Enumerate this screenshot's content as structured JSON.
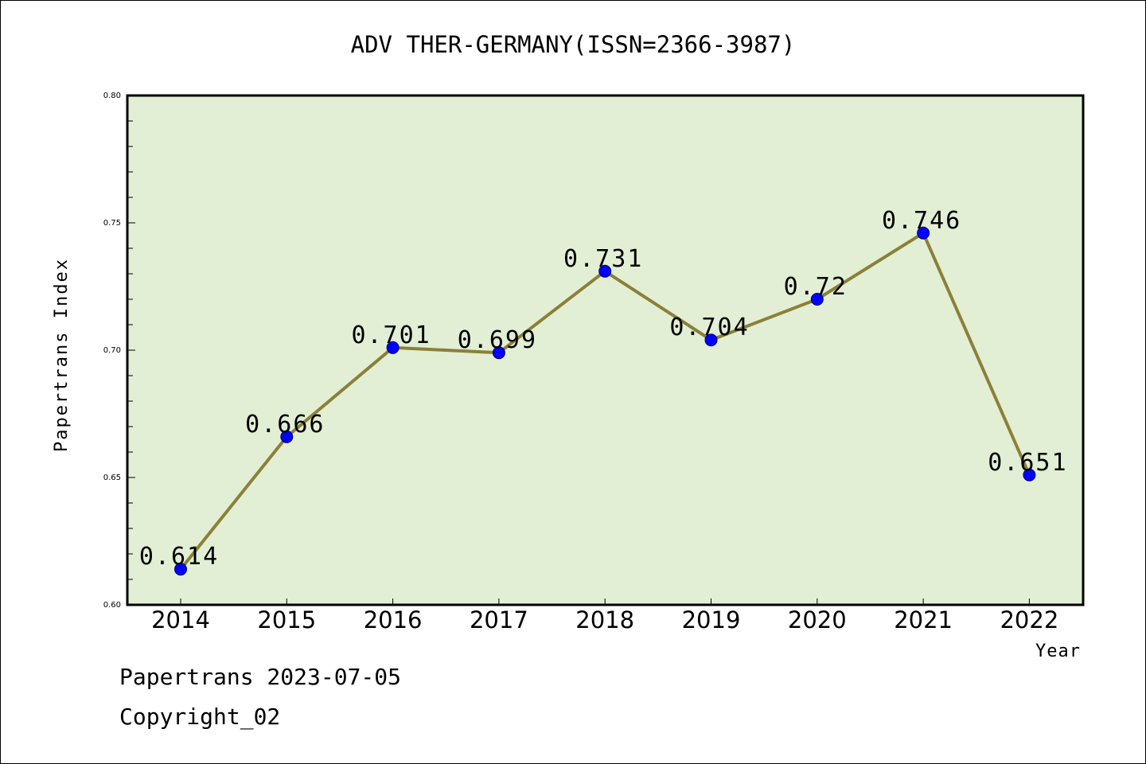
{
  "chart_data": {
    "type": "line",
    "title": "ADV THER-GERMANY(ISSN=2366-3987)",
    "xlabel": "Year",
    "ylabel": "Papertrans Index",
    "categories": [
      "2014",
      "2015",
      "2016",
      "2017",
      "2018",
      "2019",
      "2020",
      "2021",
      "2022"
    ],
    "series": [
      {
        "values": [
          0.614,
          0.666,
          0.701,
          0.699,
          0.731,
          0.704,
          0.72,
          0.746,
          0.651
        ],
        "labels": [
          "0.614",
          "0.666",
          "0.701",
          "0.699",
          "0.731",
          "0.704",
          "0.72",
          "0.746",
          "0.651"
        ]
      }
    ],
    "ylim": [
      0.6,
      0.8
    ],
    "yticks": [
      "0.60",
      "0.65",
      "0.70",
      "0.75",
      "0.80"
    ],
    "grid": false,
    "colors": {
      "line": "#8B8038",
      "marker": "#0000FF",
      "plot_background": "#E2EFD5",
      "axes": "#000000"
    }
  },
  "footer": {
    "line1": "Papertrans 2023-07-05",
    "line2": "Copyright_02"
  }
}
